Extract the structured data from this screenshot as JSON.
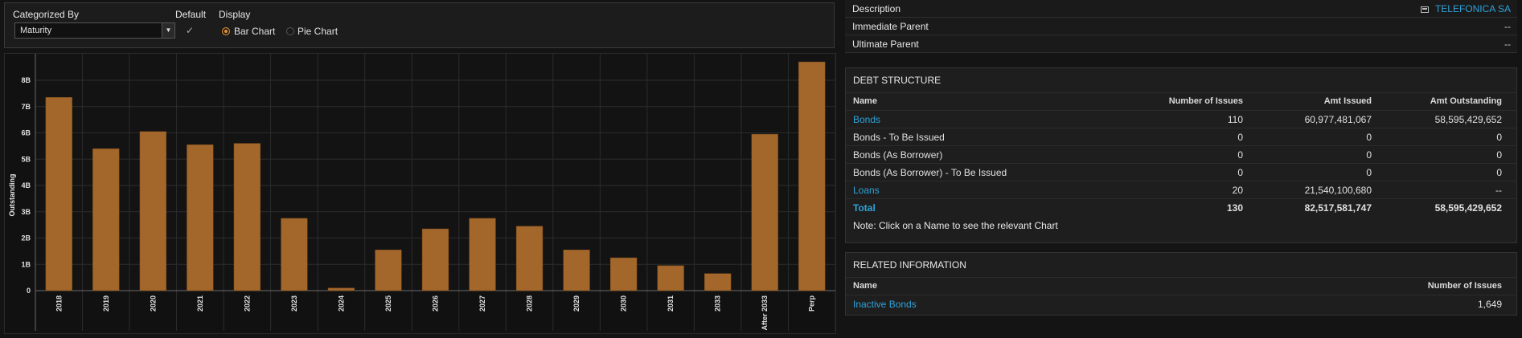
{
  "controls": {
    "categorized_by_label": "Categorized By",
    "categorized_by_value": "Maturity",
    "default_label": "Default",
    "default_check": "✓",
    "display_label": "Display",
    "bar_chart_label": "Bar Chart",
    "pie_chart_label": "Pie Chart",
    "dropdown_arrow": "▼",
    "selected_display": "Bar Chart"
  },
  "colors": {
    "bar": "#a3672b",
    "accent_link": "#2ea3d9",
    "radio_on": "#e8912c"
  },
  "chart_data": {
    "type": "bar",
    "title": "",
    "xlabel": "",
    "ylabel": "Outstanding",
    "categories": [
      "2018",
      "2019",
      "2020",
      "2021",
      "2022",
      "2023",
      "2024",
      "2025",
      "2026",
      "2027",
      "2028",
      "2029",
      "2030",
      "2031",
      "2033",
      "After 2033",
      "Perp"
    ],
    "values": [
      7.35,
      5.4,
      6.05,
      5.55,
      5.6,
      2.75,
      0.1,
      1.55,
      2.35,
      2.75,
      2.45,
      1.55,
      1.25,
      0.95,
      0.65,
      5.95,
      8.7
    ],
    "value_unit": "billions",
    "ylim": [
      0,
      8.6
    ],
    "yticks": [
      0,
      1,
      2,
      3,
      4,
      5,
      6,
      7,
      8
    ],
    "ytick_labels": [
      "0",
      "1B",
      "2B",
      "3B",
      "4B",
      "5B",
      "6B",
      "7B",
      "8B"
    ],
    "grid": true
  },
  "info": {
    "description_label": "Description",
    "description_value": "TELEFONICA SA",
    "immediate_parent_label": "Immediate Parent",
    "immediate_parent_value": "--",
    "ultimate_parent_label": "Ultimate Parent",
    "ultimate_parent_value": "--"
  },
  "debt_structure": {
    "title": "DEBT STRUCTURE",
    "headers": [
      "Name",
      "Number of Issues",
      "Amt Issued",
      "Amt Outstanding"
    ],
    "rows": [
      {
        "name": "Bonds",
        "issues": "110",
        "issued": "60,977,481,067",
        "outstanding": "58,595,429,652"
      },
      {
        "name": "Bonds - To Be Issued",
        "issues": "0",
        "issued": "0",
        "outstanding": "0"
      },
      {
        "name": "Bonds (As Borrower)",
        "issues": "0",
        "issued": "0",
        "outstanding": "0"
      },
      {
        "name": "Bonds (As Borrower) - To Be Issued",
        "issues": "0",
        "issued": "0",
        "outstanding": "0"
      },
      {
        "name": "Loans",
        "issues": "20",
        "issued": "21,540,100,680",
        "outstanding": "--"
      },
      {
        "name": "Total",
        "issues": "130",
        "issued": "82,517,581,747",
        "outstanding": "58,595,429,652"
      }
    ],
    "note": "Note: Click on a Name to see the relevant Chart"
  },
  "related": {
    "title": "RELATED INFORMATION",
    "headers": [
      "Name",
      "Number of Issues"
    ],
    "rows": [
      {
        "name": "Inactive Bonds",
        "issues": "1,649"
      }
    ]
  }
}
